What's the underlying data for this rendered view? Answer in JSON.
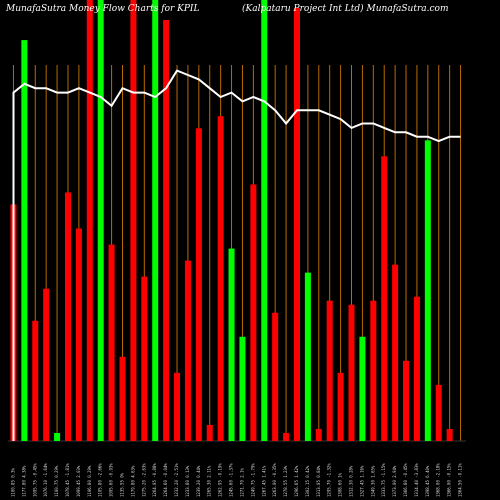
{
  "header": {
    "left_title": "MunafaSutra  Money Flow  Charts for KPIL",
    "right_title": "(Kalpataru  Project Int Ltd) MunafaSutra.com"
  },
  "chart_data": {
    "type": "bar",
    "title": "",
    "xlabel": "",
    "ylabel": "",
    "grid": true,
    "colors": {
      "up": "#00ff00",
      "down": "#ff0000",
      "grid": "#b86b00",
      "line": "#ffffff",
      "background": "#000000"
    },
    "categories": [
      "1100.85 0.3%",
      "1177.80 4.38%",
      "1095.75 -0.45%",
      "1076.10 -1.64%",
      "1100.75 0.29%",
      "1078.45 -1.81%",
      "1099.45 2.03%",
      "1106.80 0.29%",
      "1105.80 -2.66%",
      "1095.60 -0.93%",
      "1135.55 0%",
      "1179.80 4.63%",
      "1275.20 -2.63%",
      "1264.05 -0.88%",
      "1264.60 -0.04%",
      "1232.20 -2.51%",
      "1233.80 0.13%",
      "1239.20 0.44%",
      "1265.30 2.11%",
      "1262.95 -0.19%",
      "1245.60 -1.37%",
      "1271.70 2.1%",
      "1249.75 -1.79%",
      "1267.45 1.41%",
      "1263.00 -0.35%",
      "1278.55 1.23%",
      "1296.65 1.42%",
      "1302.15 0.42%",
      "1313.05 0.84%",
      "1295.70 -1.32%",
      "1308.60 1%",
      "1312.30 0.28%",
      "1327.45 1.16%",
      "1349.30 1.65%",
      "1333.75 -1.15%",
      "1373.00 2.94%",
      "1366.80 -0.45%",
      "1314.40 -3.83%",
      "1398.45 6.40%",
      "1368.00 -2.18%",
      "1366.00 -0.15%",
      "1364.50 -0.11%"
    ],
    "bars": [
      {
        "color": "red",
        "value": 0.59
      },
      {
        "color": "green",
        "value": 1.0
      },
      {
        "color": "red",
        "value": 0.3
      },
      {
        "color": "red",
        "value": 0.38
      },
      {
        "color": "green",
        "value": 0.02
      },
      {
        "color": "red",
        "value": 0.62
      },
      {
        "color": "red",
        "value": 0.53
      },
      {
        "color": "red",
        "value": 1.1
      },
      {
        "color": "green",
        "value": 1.1
      },
      {
        "color": "red",
        "value": 0.49
      },
      {
        "color": "red",
        "value": 0.21
      },
      {
        "color": "red",
        "value": 1.1
      },
      {
        "color": "red",
        "value": 0.41
      },
      {
        "color": "green",
        "value": 1.1
      },
      {
        "color": "red",
        "value": 1.05
      },
      {
        "color": "red",
        "value": 0.17
      },
      {
        "color": "red",
        "value": 0.45
      },
      {
        "color": "red",
        "value": 0.78
      },
      {
        "color": "red",
        "value": 0.04
      },
      {
        "color": "red",
        "value": 0.81
      },
      {
        "color": "green",
        "value": 0.48
      },
      {
        "color": "green",
        "value": 0.26
      },
      {
        "color": "red",
        "value": 0.64
      },
      {
        "color": "green",
        "value": 1.1
      },
      {
        "color": "red",
        "value": 0.32
      },
      {
        "color": "red",
        "value": 0.02
      },
      {
        "color": "red",
        "value": 1.08
      },
      {
        "color": "green",
        "value": 0.42
      },
      {
        "color": "red",
        "value": 0.03
      },
      {
        "color": "red",
        "value": 0.35
      },
      {
        "color": "red",
        "value": 0.17
      },
      {
        "color": "red",
        "value": 0.34
      },
      {
        "color": "green",
        "value": 0.26
      },
      {
        "color": "red",
        "value": 0.35
      },
      {
        "color": "red",
        "value": 0.71
      },
      {
        "color": "red",
        "value": 0.44
      },
      {
        "color": "red",
        "value": 0.2
      },
      {
        "color": "red",
        "value": 0.36
      },
      {
        "color": "green",
        "value": 0.75
      },
      {
        "color": "red",
        "value": 0.14
      },
      {
        "color": "red",
        "value": 0.03
      },
      {
        "color": "red",
        "value": 0.0
      }
    ],
    "line_series": [
      0.79,
      0.81,
      0.8,
      0.8,
      0.79,
      0.79,
      0.8,
      0.79,
      0.78,
      0.76,
      0.8,
      0.79,
      0.79,
      0.78,
      0.8,
      0.84,
      0.83,
      0.82,
      0.8,
      0.78,
      0.79,
      0.77,
      0.78,
      0.77,
      0.75,
      0.72,
      0.75,
      0.75,
      0.75,
      0.74,
      0.73,
      0.71,
      0.72,
      0.72,
      0.71,
      0.7,
      0.7,
      0.69,
      0.69,
      0.68,
      0.69,
      0.69
    ],
    "ylim": [
      0,
      1.1
    ]
  }
}
